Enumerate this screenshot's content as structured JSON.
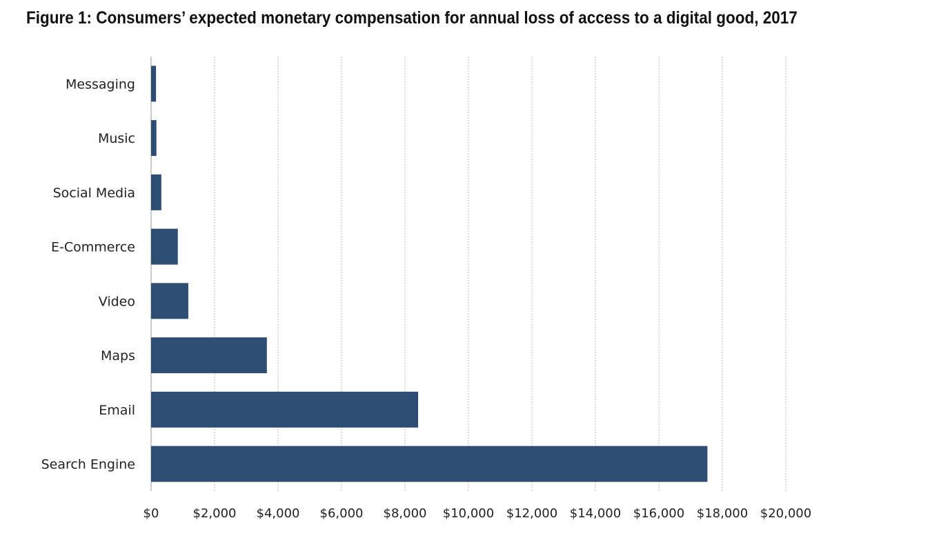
{
  "chart_data": {
    "type": "bar",
    "orientation": "horizontal",
    "title": "Figure 1: Consumers’ expected monetary compensation for annual loss of access to a digital good, 2017",
    "categories": [
      "Messaging",
      "Music",
      "Social Media",
      "E-Commerce",
      "Video",
      "Maps",
      "Email",
      "Search Engine"
    ],
    "values": [
      155,
      168,
      322,
      842,
      1173,
      3648,
      8414,
      17530
    ],
    "xlim": [
      0,
      20000
    ],
    "x_ticks": [
      0,
      2000,
      4000,
      6000,
      8000,
      10000,
      12000,
      14000,
      16000,
      18000,
      20000
    ],
    "x_tick_labels": [
      "$0",
      "$2,000",
      "$4,000",
      "$6,000",
      "$8,000",
      "$10,000",
      "$12,000",
      "$14,000",
      "$16,000",
      "$18,000",
      "$20,000"
    ],
    "grid": true,
    "bar_color": "#2e4d72",
    "gridline_color": "#b5b5b5"
  }
}
